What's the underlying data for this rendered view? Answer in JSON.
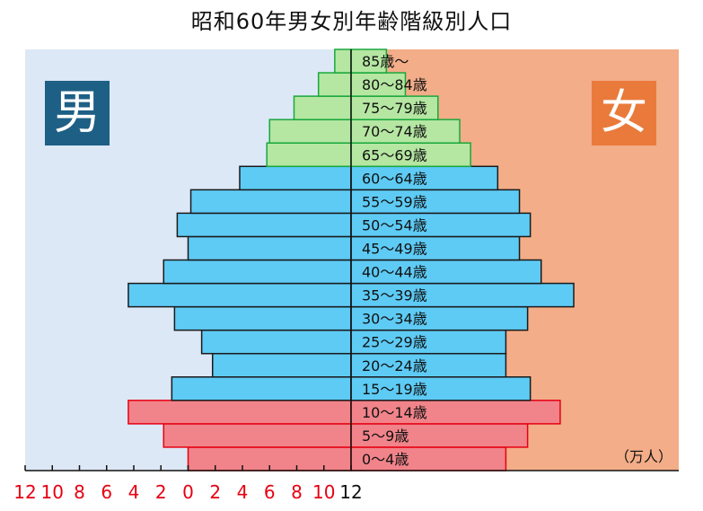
{
  "chart_data": {
    "type": "bar",
    "title": "昭和60年男女別年齢階級別人口",
    "legend": {
      "male": "男",
      "female": "女"
    },
    "unit": "（万人）",
    "xlim": [
      -12,
      12
    ],
    "x_ticks": [
      12,
      10,
      8,
      6,
      4,
      2,
      0,
      2,
      4,
      6,
      8,
      10,
      12
    ],
    "categories": [
      "0〜4歳",
      "5〜9歳",
      "10〜14歳",
      "15〜19歳",
      "20〜24歳",
      "25〜29歳",
      "30〜34歳",
      "35〜39歳",
      "40〜44歳",
      "45〜49歳",
      "50〜54歳",
      "55〜59歳",
      "60〜64歳",
      "65〜69歳",
      "70〜74歳",
      "75〜79歳",
      "80〜84歳",
      "85歳〜"
    ],
    "groups": [
      "young",
      "young",
      "young",
      "working",
      "working",
      "working",
      "working",
      "working",
      "working",
      "working",
      "working",
      "working",
      "working",
      "elderly",
      "elderly",
      "elderly",
      "elderly",
      "elderly"
    ],
    "series": [
      {
        "name": "男",
        "values": [
          6.0,
          6.9,
          8.2,
          6.6,
          5.1,
          5.5,
          6.5,
          8.2,
          6.9,
          6.0,
          6.4,
          5.9,
          4.1,
          3.1,
          3.0,
          2.1,
          1.2,
          0.6
        ]
      },
      {
        "name": "女",
        "values": [
          5.7,
          6.5,
          7.7,
          6.6,
          5.7,
          5.7,
          6.5,
          8.2,
          7.0,
          6.2,
          6.6,
          6.2,
          5.4,
          4.4,
          4.0,
          3.2,
          2.0,
          1.3
        ]
      }
    ]
  },
  "colors": {
    "male_bg": "#dce8f6",
    "female_bg": "#f3ad88",
    "young_fill": "#f0848a",
    "young_stroke": "#e60012",
    "working_fill": "#5ecbf5",
    "working_stroke": "#1a1a1a",
    "elderly_fill": "#b5e6a2",
    "elderly_stroke": "#19a83c",
    "tick_red": "#e60012",
    "tick_black": "#111111"
  }
}
